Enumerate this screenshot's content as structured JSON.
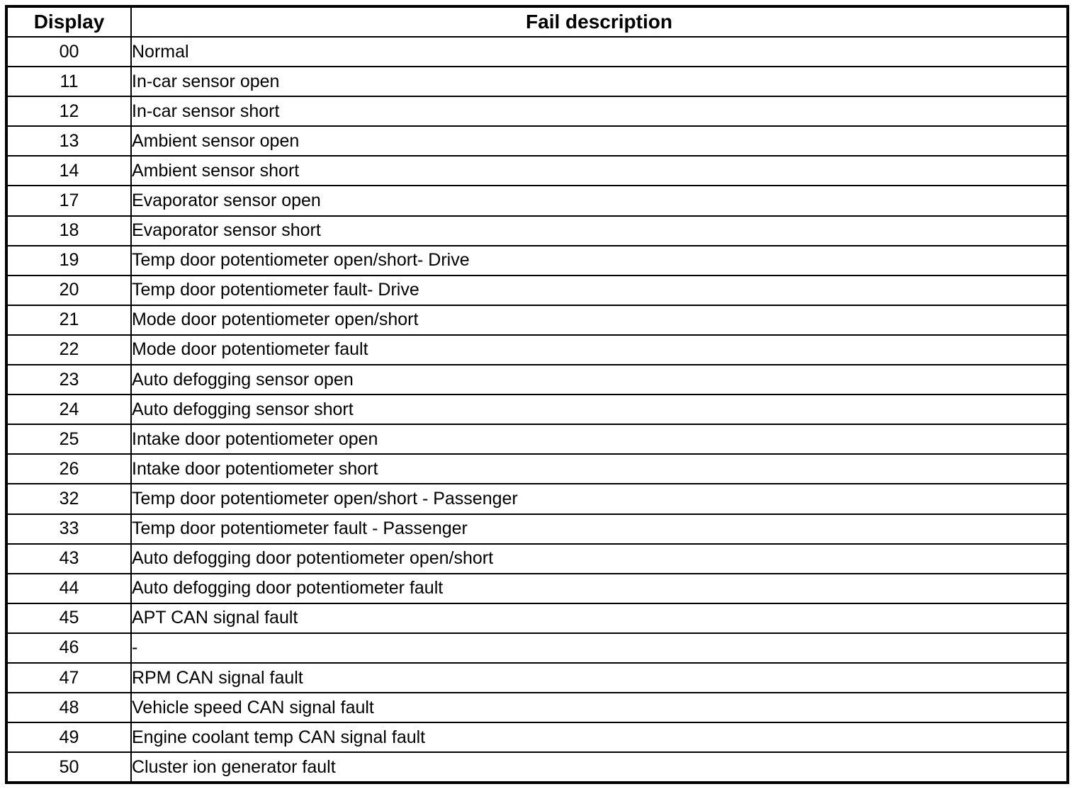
{
  "table": {
    "columns": [
      {
        "label": "Display"
      },
      {
        "label": "Fail description"
      }
    ],
    "rows": [
      {
        "code": "00",
        "description": "Normal"
      },
      {
        "code": "11",
        "description": "In-car sensor open"
      },
      {
        "code": "12",
        "description": "In-car sensor short"
      },
      {
        "code": "13",
        "description": "Ambient sensor open"
      },
      {
        "code": "14",
        "description": "Ambient sensor short"
      },
      {
        "code": "17",
        "description": "Evaporator sensor open"
      },
      {
        "code": "18",
        "description": "Evaporator sensor short"
      },
      {
        "code": "19",
        "description": "Temp door potentiometer open/short- Drive"
      },
      {
        "code": "20",
        "description": "Temp door potentiometer fault- Drive"
      },
      {
        "code": "21",
        "description": "Mode door potentiometer open/short"
      },
      {
        "code": "22",
        "description": "Mode door potentiometer fault"
      },
      {
        "code": "23",
        "description": "Auto defogging sensor open"
      },
      {
        "code": "24",
        "description": "Auto defogging sensor short"
      },
      {
        "code": "25",
        "description": "Intake door potentiometer open"
      },
      {
        "code": "26",
        "description": "Intake door potentiometer short"
      },
      {
        "code": "32",
        "description": "Temp door potentiometer open/short - Passenger"
      },
      {
        "code": "33",
        "description": "Temp door potentiometer fault - Passenger"
      },
      {
        "code": "43",
        "description": "Auto defogging door potentiometer open/short"
      },
      {
        "code": "44",
        "description": "Auto defogging door potentiometer fault"
      },
      {
        "code": "45",
        "description": "APT CAN signal fault"
      },
      {
        "code": "46",
        "description": "-"
      },
      {
        "code": "47",
        "description": "RPM CAN signal fault"
      },
      {
        "code": "48",
        "description": "Vehicle speed CAN signal fault"
      },
      {
        "code": "49",
        "description": "Engine coolant temp CAN signal fault"
      },
      {
        "code": "50",
        "description": "Cluster ion generator fault"
      }
    ]
  },
  "colors": {
    "border": "#000000",
    "background": "#ffffff",
    "text": "#000000"
  }
}
